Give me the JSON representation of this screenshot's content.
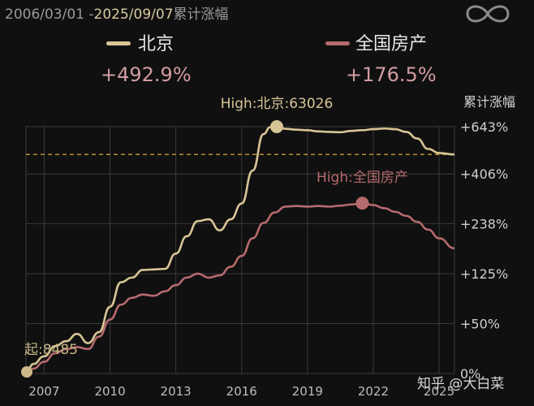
{
  "header": {
    "date_start": "2006/03/01 -",
    "date_end": "2025/09/07",
    "subtitle": "累计涨幅"
  },
  "legend": [
    {
      "name": "北京",
      "change": "+492.9%",
      "color": "#d7c595"
    },
    {
      "name": "全国房产",
      "change": "+176.5%",
      "color": "#b56a6d"
    }
  ],
  "colors": {
    "beijing": "#d7c595",
    "national": "#b56a6d",
    "pct_text": "#d29ca0",
    "dashed": "#c99a3a",
    "grid": "#3a3a3a"
  },
  "icons": {
    "top_right": "infinity-icon"
  },
  "watermark": "知乎 @大白菜",
  "chart_data": {
    "type": "line",
    "title": "",
    "y_axis_title": "累计涨幅",
    "x_ticks": [
      "2007",
      "2010",
      "2013",
      "2016",
      "2019",
      "2022",
      "2025"
    ],
    "y_ticks": [
      "+643%",
      "+406%",
      "+238%",
      "+125%",
      "+50%",
      "0%"
    ],
    "y_scale": "log(1+r)",
    "grid": true,
    "legend_position": "top",
    "annotations": {
      "beijing_high": "High:北京:63026",
      "national_high": "High:全国房产",
      "start_label": "起:8485"
    },
    "reference_line": 492.9,
    "series": [
      {
        "name": "北京",
        "x": [
          2006.17,
          2006.5,
          2007.0,
          2007.5,
          2008.0,
          2008.5,
          2009.0,
          2009.5,
          2010.0,
          2010.5,
          2011.0,
          2011.5,
          2012.0,
          2012.5,
          2013.0,
          2013.5,
          2014.0,
          2014.5,
          2015.0,
          2015.5,
          2016.0,
          2016.5,
          2017.0,
          2017.3,
          2017.6,
          2018.0,
          2018.5,
          2019.0,
          2019.5,
          2020.0,
          2020.5,
          2021.0,
          2021.5,
          2022.0,
          2022.5,
          2023.0,
          2023.5,
          2024.0,
          2024.5,
          2025.0,
          2025.7
        ],
        "values": [
          0,
          8,
          15,
          25,
          30,
          38,
          28,
          40,
          72,
          110,
          118,
          132,
          133,
          134,
          165,
          205,
          245,
          250,
          220,
          250,
          298,
          420,
          600,
          640,
          643,
          630,
          625,
          622,
          615,
          612,
          610,
          618,
          622,
          628,
          632,
          628,
          612,
          575,
          520,
          500,
          492.9
        ]
      },
      {
        "name": "全国房产",
        "x": [
          2006.17,
          2006.5,
          2007.0,
          2007.5,
          2008.0,
          2008.5,
          2009.0,
          2009.5,
          2010.0,
          2010.5,
          2011.0,
          2011.5,
          2012.0,
          2012.5,
          2013.0,
          2013.5,
          2014.0,
          2014.5,
          2015.0,
          2015.5,
          2016.0,
          2016.5,
          2017.0,
          2017.5,
          2018.0,
          2018.5,
          2019.0,
          2019.5,
          2020.0,
          2020.5,
          2021.0,
          2021.5,
          2022.0,
          2022.5,
          2023.0,
          2023.5,
          2024.0,
          2024.5,
          2025.0,
          2025.7
        ],
        "values": [
          0,
          4,
          10,
          18,
          22,
          24,
          22,
          35,
          55,
          75,
          85,
          90,
          88,
          95,
          105,
          118,
          125,
          118,
          122,
          138,
          160,
          200,
          240,
          270,
          288,
          290,
          288,
          290,
          288,
          291,
          295,
          299,
          293,
          283,
          272,
          260,
          243,
          222,
          200,
          176.5
        ]
      }
    ]
  }
}
